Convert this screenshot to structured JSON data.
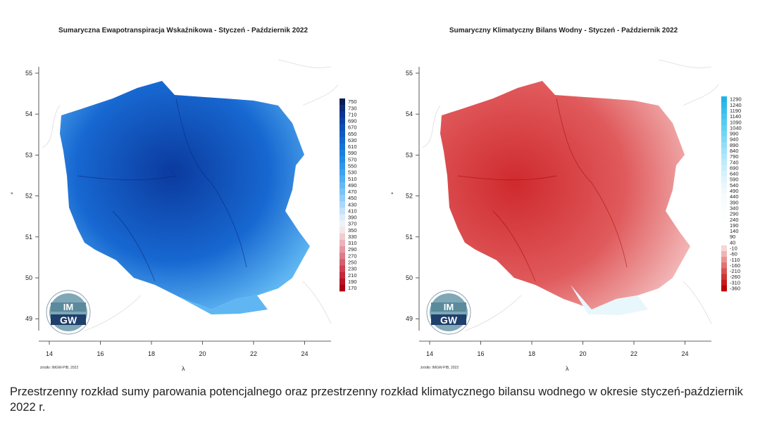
{
  "left_map": {
    "title": "Sumaryczna Ewapotranspiracja Wskaźnikowa - Styczeń - Październik 2022",
    "legend_values": [
      "750",
      "730",
      "710",
      "690",
      "670",
      "650",
      "630",
      "610",
      "590",
      "570",
      "550",
      "530",
      "510",
      "490",
      "470",
      "450",
      "430",
      "410",
      "390",
      "370",
      "350",
      "330",
      "310",
      "290",
      "270",
      "250",
      "230",
      "210",
      "190",
      "170"
    ],
    "legend_colors": [
      "#081d58",
      "#0a2a7a",
      "#0b3590",
      "#0c42a3",
      "#0d4fb4",
      "#0f5bc2",
      "#1267cd",
      "#1573d6",
      "#1a7fde",
      "#238ae4",
      "#2f96ea",
      "#3ea2ef",
      "#4fadf2",
      "#63b8f5",
      "#7ac3f7",
      "#92cdf8",
      "#abd7f9",
      "#c4e2fa",
      "#dcecfb",
      "#eef3f9",
      "#f5e6e8",
      "#f0cdd2",
      "#eab3bb",
      "#e398a3",
      "#dc7c89",
      "#d4606f",
      "#cc4455",
      "#c22a3c",
      "#b81428",
      "#ab0015"
    ],
    "fill_dark": "#0b3a9e",
    "fill_mid": "#1768d1",
    "fill_light": "#5fb6f2"
  },
  "right_map": {
    "title": "Sumaryczny Klimatyczny Bilans Wodny - Styczeń - Październik 2022",
    "legend_values": [
      "1290",
      "1240",
      "1190",
      "1140",
      "1090",
      "1040",
      "990",
      "940",
      "890",
      "840",
      "790",
      "740",
      "690",
      "640",
      "590",
      "540",
      "490",
      "440",
      "390",
      "340",
      "290",
      "240",
      "190",
      "140",
      "90",
      "40",
      "-10",
      "-60",
      "-110",
      "-160",
      "-210",
      "-260",
      "-310",
      "-360"
    ],
    "legend_colors": [
      "#1eb4e8",
      "#2bbaea",
      "#38c0ec",
      "#46c5ee",
      "#55cbf0",
      "#63d0f2",
      "#72d5f3",
      "#81daf5",
      "#90def6",
      "#9fe3f8",
      "#aee7f9",
      "#bcebfa",
      "#c9eefb",
      "#d5f1fb",
      "#e0f4fc",
      "#e9f7fd",
      "#f1f9fd",
      "#f5fbfe",
      "#f8fcfe",
      "#fafdfe",
      "#fcfefe",
      "#fdfefe",
      "#ffffff",
      "#ffffff",
      "#ffffff",
      "#ffffff",
      "#f6d6d6",
      "#efb4b4",
      "#e89393",
      "#e07272",
      "#d85252",
      "#d03434",
      "#c71a1a",
      "#bd0000"
    ],
    "fill_dark": "#cf2a2e",
    "fill_mid": "#e05a5c",
    "fill_light": "#f5c4c4"
  },
  "axes": {
    "y_ticks": [
      "55",
      "54",
      "53",
      "52",
      "51",
      "50",
      "49"
    ],
    "x_ticks": [
      "14",
      "16",
      "18",
      "20",
      "22",
      "24"
    ],
    "y_side_label": "°",
    "x_side_label": "λ"
  },
  "logo": {
    "top": "IM",
    "bottom": "GW"
  },
  "footnote": "źródło: IMGW-PIB, 2022",
  "caption": "Przestrzenny rozkład sumy parowania potencjalnego oraz przestrzenny rozkład klimatycznego bilansu wodnego w okresie styczeń-październik 2022 r."
}
